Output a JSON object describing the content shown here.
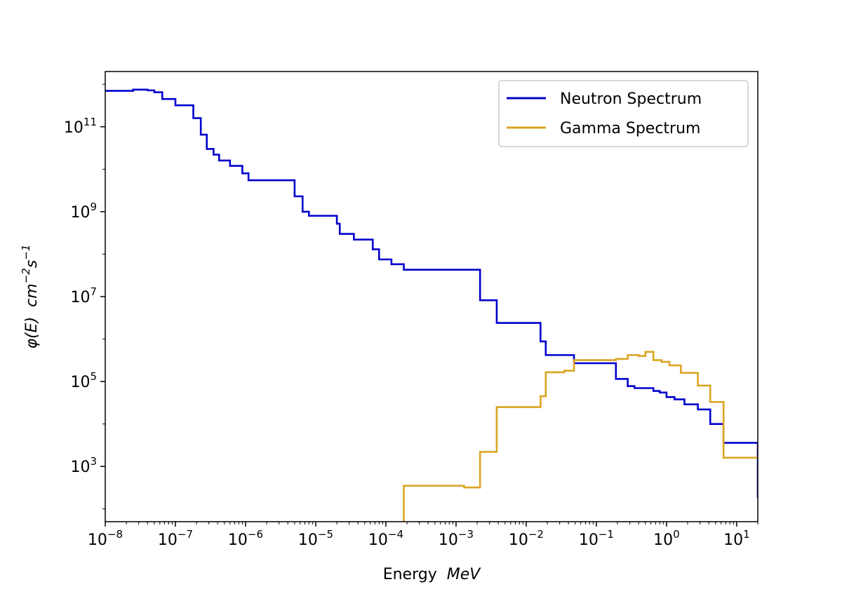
{
  "chart_data": {
    "type": "line",
    "step": true,
    "title": "",
    "xlabel_text": "Energy",
    "xlabel_unit": "MeV",
    "ylabel_main": "φ(E)",
    "ylabel_unit_base1": "cm",
    "ylabel_unit_exp1": "−2",
    "ylabel_unit_base2": "s",
    "ylabel_unit_exp2": "−1",
    "x_scale": "log",
    "y_scale": "log",
    "xlim": [
      1e-08,
      20
    ],
    "ylim": [
      50,
      2000000000000.0
    ],
    "x_ticks": [
      {
        "base": "10",
        "exp": "−8",
        "value": 1e-08
      },
      {
        "base": "10",
        "exp": "−7",
        "value": 1e-07
      },
      {
        "base": "10",
        "exp": "−6",
        "value": 1e-06
      },
      {
        "base": "10",
        "exp": "−5",
        "value": 1e-05
      },
      {
        "base": "10",
        "exp": "−4",
        "value": 0.0001
      },
      {
        "base": "10",
        "exp": "−3",
        "value": 0.001
      },
      {
        "base": "10",
        "exp": "−2",
        "value": 0.01
      },
      {
        "base": "10",
        "exp": "−1",
        "value": 0.1
      },
      {
        "base": "10",
        "exp": "0",
        "value": 1
      },
      {
        "base": "10",
        "exp": "1",
        "value": 10
      }
    ],
    "y_ticks": [
      {
        "base": "10",
        "exp": "3",
        "value": 1000.0
      },
      {
        "base": "10",
        "exp": "5",
        "value": 100000.0
      },
      {
        "base": "10",
        "exp": "7",
        "value": 10000000.0
      },
      {
        "base": "10",
        "exp": "9",
        "value": 1000000000.0
      },
      {
        "base": "10",
        "exp": "11",
        "value": 100000000000.0
      }
    ],
    "grid": false,
    "legend_position": "top-right",
    "series": [
      {
        "name": "Neutron Spectrum",
        "color": "#0000cc",
        "edges": [
          1e-08,
          2.5e-08,
          4e-08,
          5e-08,
          6.5e-08,
          1e-07,
          1.8e-07,
          2.3e-07,
          2.8e-07,
          3.5e-07,
          4.2e-07,
          6e-07,
          9e-07,
          1.1e-06,
          5e-06,
          6.5e-06,
          8e-06,
          2e-05,
          2.2e-05,
          3.5e-05,
          6.5e-05,
          8e-05,
          0.00012,
          0.00018,
          0.0022,
          0.0038,
          0.016,
          0.019,
          0.048,
          0.19,
          0.28,
          0.35,
          0.65,
          0.8,
          1.0,
          1.3,
          1.8,
          2.8,
          4.2,
          6.5,
          20
        ],
        "values": [
          700000000000.0,
          750000000000.0,
          720000000000.0,
          650000000000.0,
          450000000000.0,
          320000000000.0,
          160000000000.0,
          65000000000.0,
          30000000000.0,
          22000000000.0,
          16000000000.0,
          12000000000.0,
          8000000000.0,
          5500000000.0,
          2300000000.0,
          1000000000.0,
          800000000.0,
          520000000.0,
          300000000.0,
          220000000.0,
          130000000.0,
          75000000.0,
          58000000.0,
          43000000.0,
          8200000.0,
          2400000.0,
          880000.0,
          420000.0,
          270000.0,
          115000.0,
          78000.0,
          70000.0,
          60000.0,
          55000.0,
          43000.0,
          38000.0,
          29000.0,
          22000.0,
          10000.0,
          3600.0,
          180
        ]
      },
      {
        "name": "Gamma Spectrum",
        "color": "#daa520",
        "edges": [
          0.00018,
          0.0013,
          0.0022,
          0.0038,
          0.016,
          0.019,
          0.035,
          0.048,
          0.19,
          0.28,
          0.4,
          0.5,
          0.65,
          0.85,
          1.1,
          1.6,
          2.8,
          4.2,
          6.5,
          20
        ],
        "values": [
          350,
          320,
          2200.0,
          25000.0,
          45000.0,
          165000.0,
          180000.0,
          320000.0,
          340000.0,
          420000.0,
          400000.0,
          500000.0,
          320000.0,
          290000.0,
          240000.0,
          160000.0,
          80000.0,
          33000.0,
          1600.0,
          1600.0
        ]
      }
    ]
  }
}
